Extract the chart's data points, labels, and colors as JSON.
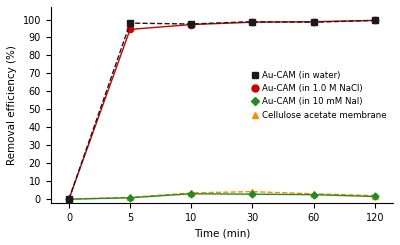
{
  "time_labels": [
    0,
    5,
    10,
    30,
    60,
    120
  ],
  "time_positions": [
    0,
    1,
    2,
    3,
    4,
    5
  ],
  "au_cam_water": [
    0,
    98.0,
    97.5,
    98.8,
    98.5,
    99.5
  ],
  "au_cam_nacl": [
    0,
    94.5,
    97.2,
    98.5,
    98.8,
    99.5
  ],
  "au_cam_nai": [
    0,
    0.8,
    3.0,
    2.8,
    2.5,
    1.5
  ],
  "cellulose": [
    0,
    1.0,
    3.5,
    4.2,
    3.0,
    2.0
  ],
  "color_water": "#1a1a1a",
  "color_nacl": "#cc0000",
  "color_nai": "#228B22",
  "color_cellulose": "#FF8C00",
  "ylabel": "Removal efficiency (%)",
  "xlabel": "Time (min)",
  "ylim": [
    -2,
    107
  ],
  "legend_labels": [
    "Au-CAM (in water)",
    "Au-CAM (in 1.0 M NaCl)",
    "Au-CAM (in 10 mM NaI)",
    "Cellulose acetate membrane"
  ],
  "yticks": [
    0,
    10,
    20,
    30,
    40,
    50,
    60,
    70,
    80,
    90,
    100
  ]
}
